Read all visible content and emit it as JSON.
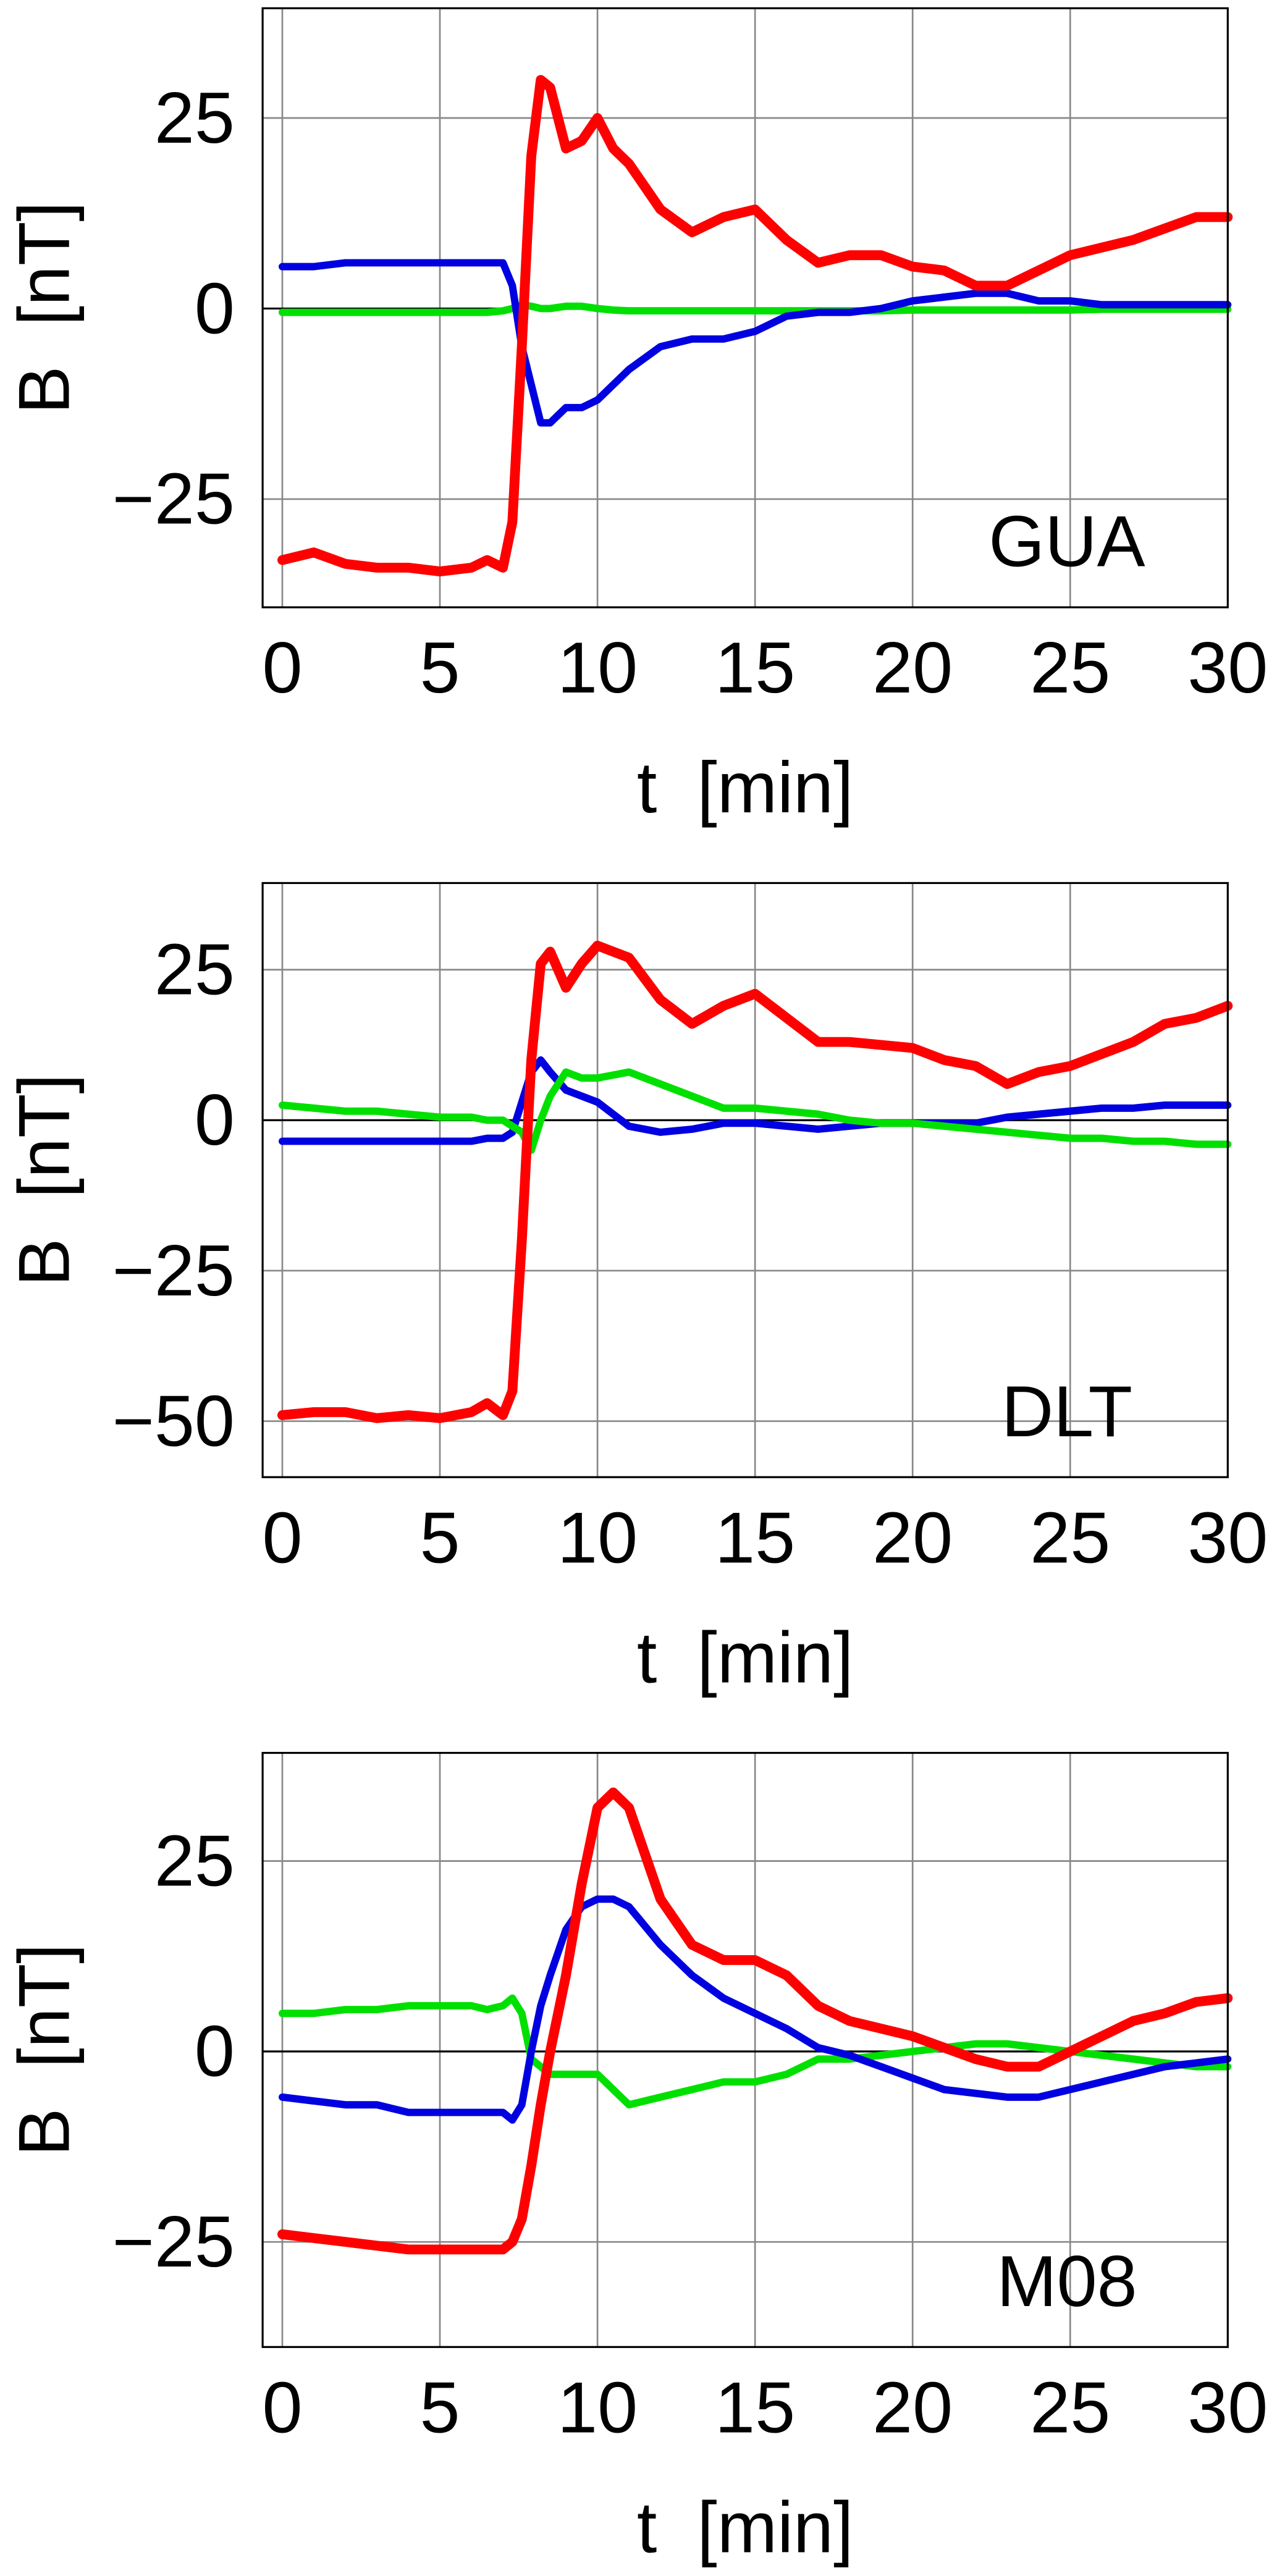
{
  "chart_data": [
    {
      "type": "line",
      "annotation": "GUA",
      "xlabel": "t  [min]",
      "ylabel": "B  [nT]",
      "x": [
        0,
        1,
        2,
        3,
        4,
        5,
        6,
        6.5,
        7,
        7.3,
        7.6,
        7.9,
        8.2,
        8.5,
        9,
        9.5,
        10,
        10.5,
        11,
        12,
        13,
        14,
        15,
        16,
        17,
        18,
        19,
        20,
        21,
        22,
        23,
        24,
        25,
        26,
        27,
        28,
        29,
        30
      ],
      "series": [
        {
          "color": "#00e000",
          "values": [
            -0.5,
            -0.5,
            -0.5,
            -0.5,
            -0.5,
            -0.5,
            -0.5,
            -0.5,
            -0.3,
            0,
            0.5,
            0.3,
            0,
            0,
            0.3,
            0.3,
            0,
            -0.2,
            -0.3,
            -0.3,
            -0.3,
            -0.3,
            -0.3,
            -0.3,
            -0.3,
            -0.3,
            -0.3,
            -0.2,
            -0.2,
            -0.2,
            -0.2,
            -0.2,
            -0.2,
            -0.1,
            -0.1,
            -0.1,
            -0.1,
            -0.1
          ]
        },
        {
          "color": "#0000e0",
          "values": [
            5.5,
            5.5,
            6,
            6,
            6,
            6,
            6,
            6,
            6,
            3,
            -5,
            -10,
            -15,
            -15,
            -13,
            -13,
            -12,
            -10,
            -8,
            -5,
            -4,
            -4,
            -3,
            -1,
            -0.5,
            -0.5,
            0,
            1,
            1.5,
            2,
            2,
            1,
            1,
            0.5,
            0.5,
            0.5,
            0.5,
            0.5
          ]
        },
        {
          "color": "#ff0000",
          "values": [
            -33,
            -32,
            -33.5,
            -34,
            -34,
            -34.5,
            -34,
            -33,
            -34,
            -28,
            -5,
            20,
            30,
            29,
            21,
            22,
            25,
            21,
            19,
            13,
            10,
            12,
            13,
            9,
            6,
            7,
            7,
            5.5,
            5,
            3,
            3,
            5,
            7,
            8,
            9,
            10.5,
            12,
            12
          ]
        }
      ],
      "xlim": [
        -0.625,
        30
      ],
      "xticks": [
        0,
        5,
        10,
        15,
        20,
        25,
        30
      ],
      "ylim": [
        -39.2,
        39.4
      ],
      "yticks": [
        -25,
        0,
        25
      ],
      "grid": true
    },
    {
      "type": "line",
      "annotation": "DLT",
      "xlabel": "t  [min]",
      "ylabel": "B  [nT]",
      "x": [
        0,
        1,
        2,
        3,
        4,
        5,
        6,
        6.5,
        7,
        7.3,
        7.6,
        7.9,
        8.2,
        8.5,
        9,
        9.5,
        10,
        10.5,
        11,
        12,
        13,
        14,
        15,
        16,
        17,
        18,
        19,
        20,
        21,
        22,
        23,
        24,
        25,
        26,
        27,
        28,
        29,
        30
      ],
      "series": [
        {
          "color": "#0000e0",
          "values": [
            -3.5,
            -3.5,
            -3.5,
            -3.5,
            -3.5,
            -3.5,
            -3.5,
            -3,
            -3,
            -2,
            3,
            8,
            10,
            8,
            5,
            4,
            3,
            1,
            -1,
            -2,
            -1.5,
            -0.5,
            -0.5,
            -1,
            -1.5,
            -1,
            -0.5,
            -0.5,
            -0.5,
            -0.5,
            0.5,
            1,
            1.5,
            2,
            2,
            2.5,
            2.5,
            2.5
          ]
        },
        {
          "color": "#00e000",
          "values": [
            2.5,
            2,
            1.5,
            1.5,
            1,
            0.5,
            0.5,
            0,
            0,
            -1,
            -2,
            -5,
            0,
            4,
            8,
            7,
            7,
            7.5,
            8,
            6,
            4,
            2,
            2,
            1.5,
            1,
            0,
            -0.5,
            -0.5,
            -1,
            -1.5,
            -2,
            -2.5,
            -3,
            -3,
            -3.5,
            -3.5,
            -4,
            -4
          ]
        },
        {
          "color": "#ff0000",
          "values": [
            -49,
            -48.5,
            -48.5,
            -49.5,
            -49,
            -49.5,
            -48.5,
            -47,
            -49,
            -45,
            -20,
            10,
            26,
            28,
            22,
            26,
            29,
            28,
            27,
            20,
            16,
            19,
            21,
            17,
            13,
            13,
            12.5,
            12,
            10,
            9,
            6,
            8,
            9,
            11,
            13,
            16,
            17,
            19
          ]
        }
      ],
      "xlim": [
        -0.625,
        30
      ],
      "xticks": [
        0,
        5,
        10,
        15,
        20,
        25,
        30
      ],
      "ylim": [
        -59.3,
        39.4
      ],
      "yticks": [
        -50,
        -25,
        0,
        25
      ],
      "grid": true
    },
    {
      "type": "line",
      "annotation": "M08",
      "xlabel": "t  [min]",
      "ylabel": "B  [nT]",
      "x": [
        0,
        1,
        2,
        3,
        4,
        5,
        6,
        6.5,
        7,
        7.3,
        7.6,
        7.9,
        8.2,
        8.5,
        9,
        9.5,
        10,
        10.5,
        11,
        12,
        13,
        14,
        15,
        16,
        17,
        18,
        19,
        20,
        21,
        22,
        23,
        24,
        25,
        26,
        27,
        28,
        29,
        30
      ],
      "series": [
        {
          "color": "#00e000",
          "values": [
            5,
            5,
            5.5,
            5.5,
            6,
            6,
            6,
            5.5,
            6,
            7,
            5,
            -1,
            -2,
            -3,
            -3,
            -3,
            -3,
            -5,
            -7,
            -6,
            -5,
            -4,
            -4,
            -3,
            -1,
            -1,
            -0.5,
            0,
            0.5,
            1,
            1,
            0.5,
            0,
            -0.5,
            -1,
            -1.5,
            -2,
            -2
          ]
        },
        {
          "color": "#0000e0",
          "values": [
            -6,
            -6.5,
            -7,
            -7,
            -8,
            -8,
            -8,
            -8,
            -8,
            -9,
            -7,
            0,
            6,
            10,
            16,
            19,
            20,
            20,
            19,
            14,
            10,
            7,
            5,
            3,
            0.5,
            -0.5,
            -2,
            -3.5,
            -5,
            -5.5,
            -6,
            -6,
            -5,
            -4,
            -3,
            -2,
            -1.5,
            -1
          ]
        },
        {
          "color": "#ff0000",
          "values": [
            -24,
            -24.5,
            -25,
            -25.5,
            -26,
            -26,
            -26,
            -26,
            -26,
            -25,
            -22,
            -15,
            -7,
            0,
            10,
            22,
            32,
            34,
            32,
            20,
            14,
            12,
            12,
            10,
            6,
            4,
            3,
            2,
            0.5,
            -1,
            -2,
            -2,
            0,
            2,
            4,
            5,
            6.5,
            7
          ]
        }
      ],
      "xlim": [
        -0.625,
        30
      ],
      "xticks": [
        0,
        5,
        10,
        15,
        20,
        25,
        30
      ],
      "ylim": [
        -38.8,
        39.2
      ],
      "yticks": [
        -25,
        0,
        25
      ],
      "grid": true
    }
  ]
}
